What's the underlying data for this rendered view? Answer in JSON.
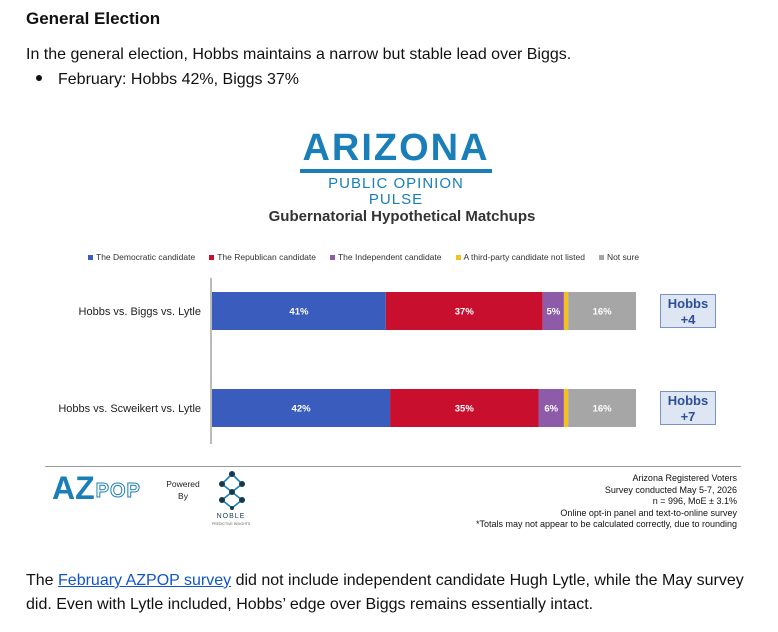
{
  "heading": "General Election",
  "intro": "In the general election, Hobbs maintains a narrow but stable lead over Biggs.",
  "bullet": "February: Hobbs 42%, Biggs 37%",
  "logo": {
    "title": "ARIZONA",
    "subtitle": "PUBLIC OPINION PULSE",
    "color": "#1a7fb8"
  },
  "chart_data": {
    "type": "bar",
    "orientation": "horizontal",
    "stacked": true,
    "title": "Gubernatorial Hypothetical Matchups",
    "xlim": [
      0,
      100
    ],
    "legend_position": "top",
    "categories": [
      "Hobbs vs. Biggs vs. Lytle",
      "Hobbs vs. Scweikert vs. Lytle"
    ],
    "series": [
      {
        "name": "The Democratic candidate",
        "color": "#3a5dbd",
        "values": [
          41,
          42
        ],
        "labels": [
          "41%",
          "42%"
        ]
      },
      {
        "name": "The Republican candidate",
        "color": "#c8102e",
        "values": [
          37,
          35
        ],
        "labels": [
          "37%",
          "35%"
        ]
      },
      {
        "name": "The Independent candidate",
        "color": "#8e5ba8",
        "values": [
          5,
          6
        ],
        "labels": [
          "5%",
          "6%"
        ]
      },
      {
        "name": "A third-party candidate not listed",
        "color": "#f4c21d",
        "values": [
          1,
          1
        ],
        "labels": [
          "",
          ""
        ]
      },
      {
        "name": "Not sure",
        "color": "#a6a6a6",
        "values": [
          16,
          16
        ],
        "labels": [
          "16%",
          "16%"
        ]
      }
    ],
    "leads": [
      {
        "name": "Hobbs",
        "margin": "+4"
      },
      {
        "name": "Hobbs",
        "margin": "+7"
      }
    ]
  },
  "footer": {
    "azpop_az": "AZ",
    "azpop_pop": "POP",
    "powered_line1": "Powered",
    "powered_line2": "By",
    "noble_name": "NOBLE",
    "noble_tagline": "PREDICTIVE INSIGHTS",
    "notes": [
      "Arizona Registered Voters",
      "Survey conducted May 5-7, 2026",
      "n = 996, MoE ± 3.1%",
      "Online opt-in panel and text-to-online survey",
      "*Totals may not appear to be calculated correctly, due to rounding"
    ]
  },
  "outro": {
    "before": "The ",
    "link": "February AZPOP survey",
    "after": " did not include independent candidate Hugh Lytle, while the May survey did. Even with Lytle included, Hobbs’ edge over Biggs remains essentially intact."
  }
}
